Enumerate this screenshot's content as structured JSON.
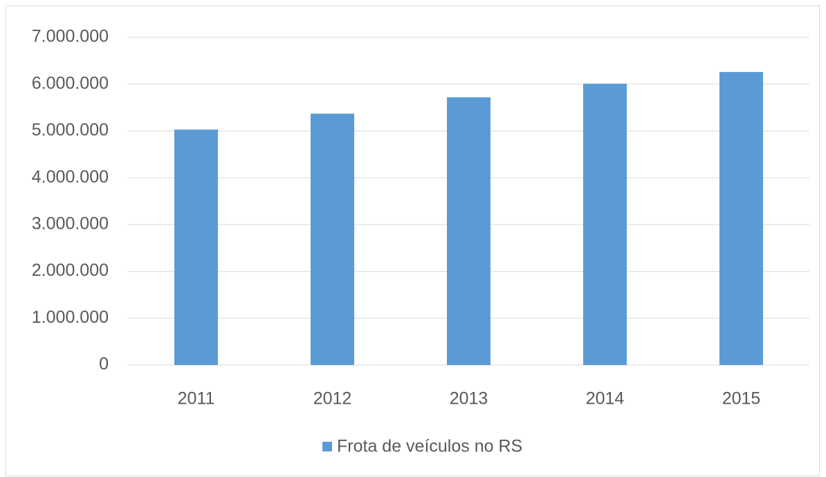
{
  "chart_data": {
    "type": "bar",
    "categories": [
      "2011",
      "2012",
      "2013",
      "2014",
      "2015"
    ],
    "series": [
      {
        "name": "Frota de veículos no RS",
        "color": "#5b9bd5",
        "values": [
          5030000,
          5370000,
          5720000,
          6010000,
          6260000
        ]
      }
    ],
    "ylim": [
      0,
      7000000
    ],
    "yticks": [
      0,
      {
        "value": 1000000,
        "label": "1.000.000"
      },
      {
        "value": 2000000,
        "label": "2.000.000"
      },
      {
        "value": 3000000,
        "label": "3.000.000"
      },
      {
        "value": 4000000,
        "label": "4.000.000"
      },
      {
        "value": 5000000,
        "label": "5.000.000"
      },
      {
        "value": 6000000,
        "label": "6.000.000"
      },
      {
        "value": 7000000,
        "label": "7.000.000"
      }
    ],
    "grid": true,
    "legend": "bottom"
  }
}
